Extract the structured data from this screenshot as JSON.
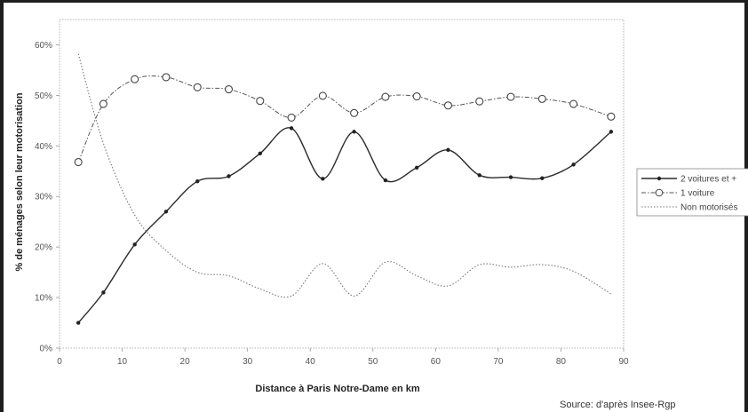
{
  "chart_data": {
    "type": "line",
    "xlabel": "Distance à Paris Notre-Dame en km",
    "ylabel": "% de ménages selon leur motorisation",
    "xlim": [
      0,
      90
    ],
    "ylim": [
      0,
      65
    ],
    "x_ticks": [
      "0",
      "10",
      "20",
      "30",
      "40",
      "50",
      "60",
      "70",
      "80",
      "90"
    ],
    "y_ticks": [
      "0%",
      "10%",
      "20%",
      "30%",
      "40%",
      "50%",
      "60%"
    ],
    "grid": false,
    "legend_position": "right",
    "source": "Source: d'après Insee-Rgp",
    "series": [
      {
        "name": "2 voitures et +",
        "style": "solid-dots",
        "color": "#2a2a2a",
        "x": [
          3,
          7,
          12,
          17,
          22,
          27,
          32,
          37,
          42,
          47,
          52,
          57,
          62,
          67,
          72,
          77,
          82,
          88
        ],
        "values": [
          5,
          11,
          20.5,
          27,
          33,
          34,
          38.5,
          43.5,
          33.5,
          42.8,
          33.2,
          35.7,
          39.2,
          34.2,
          33.8,
          33.6,
          36.3,
          42.8
        ]
      },
      {
        "name": "1 voiture",
        "style": "dashdot-circles",
        "color": "#555555",
        "x": [
          3,
          7,
          12,
          17,
          22,
          27,
          32,
          37,
          42,
          47,
          52,
          57,
          62,
          67,
          72,
          77,
          82,
          88
        ],
        "values": [
          36.8,
          48.3,
          53.2,
          53.6,
          51.6,
          51.2,
          48.9,
          45.6,
          49.9,
          46.5,
          49.7,
          49.8,
          48,
          48.8,
          49.7,
          49.3,
          48.3,
          45.8
        ]
      },
      {
        "name": "Non motorisés",
        "style": "dotted",
        "color": "#777777",
        "x": [
          3,
          7,
          12,
          17,
          22,
          27,
          32,
          37,
          42,
          47,
          52,
          57,
          62,
          67,
          72,
          77,
          82,
          88
        ],
        "values": [
          58.2,
          40.5,
          26.3,
          19.3,
          15,
          14.3,
          11.7,
          10.3,
          16.7,
          10.3,
          17,
          14.3,
          12.3,
          16.5,
          16,
          16.5,
          15.2,
          10.7
        ]
      }
    ]
  }
}
